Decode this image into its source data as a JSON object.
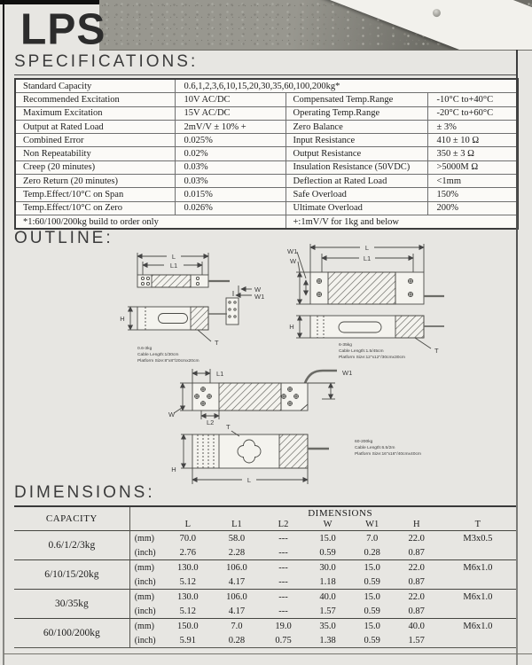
{
  "page": {
    "title": "LPS"
  },
  "headings": {
    "specifications": "SPECIFICATIONS:",
    "outline": "OUTLINE:",
    "dimensions": "DIMENSIONS:"
  },
  "spec_table": {
    "capacity_label": "Standard Capacity",
    "capacity_value": "0.6,1,2,3,6,10,15,20,30,35,60,100,200kg*",
    "rows": [
      {
        "l1": "Recommended Excitation",
        "v1": "10V AC/DC",
        "l2": "Compensated Temp.Range",
        "v2": "-10°C to+40°C"
      },
      {
        "l1": "Maximum Excitation",
        "v1": "15V AC/DC",
        "l2": "Operating Temp.Range",
        "v2": "-20°C to+60°C"
      },
      {
        "l1": "Output at Rated Load",
        "v1": "2mV/V ± 10% +",
        "l2": "Zero Balance",
        "v2": "± 3%"
      },
      {
        "l1": "Combined Error",
        "v1": "0.025%",
        "l2": "Input Resistance",
        "v2": "410 ± 10 Ω"
      },
      {
        "l1": "Non Repeatability",
        "v1": "0.02%",
        "l2": "Output Resistance",
        "v2": "350 ± 3 Ω"
      },
      {
        "l1": "Creep (20 minutes)",
        "v1": "0.03%",
        "l2": "Insulation Resistance (50VDC)",
        "v2": ">5000M Ω"
      },
      {
        "l1": "Zero Return (20 minutes)",
        "v1": "0.03%",
        "l2": "Deflection at Rated Load",
        "v2": "<1mm"
      },
      {
        "l1": "Temp.Effect/10°C on Span",
        "v1": "0.015%",
        "l2": "Safe Overload",
        "v2": "150%"
      },
      {
        "l1": "Temp.Effect/10°C on Zero",
        "v1": "0.026%",
        "l2": "Ultimate Overload",
        "v2": "200%"
      }
    ],
    "footnote_left": "*1:60/100/200kg build to order only",
    "footnote_right": "+:1mV/V for 1kg and below"
  },
  "outline": {
    "dim_labels": {
      "l": "L",
      "l1": "L1",
      "l2": "L2",
      "w": "W",
      "w1": "W1",
      "h": "H",
      "t": "T"
    },
    "drawings": [
      {
        "range": "0.6-3kg",
        "cable": "Cable Length:1/30cm",
        "platform": "Platform Size:8\"x8\"/20cmx20cm"
      },
      {
        "range": "6-35kg",
        "cable": "Cable Length:1.5/45cm",
        "platform": "Platform Size:12\"x12\"/30cmx30cm"
      },
      {
        "range": "60-200kg",
        "cable": "Cable Length:6.5/2m",
        "platform": "Platform Size:16\"x16\"/40cmx40cm"
      }
    ]
  },
  "dim_table": {
    "capacity_header": "CAPACITY",
    "dimensions_header": "DIMENSIONS",
    "columns": [
      "L",
      "L1",
      "L2",
      "W",
      "W1",
      "H",
      "T"
    ],
    "unit_labels": [
      "(mm)",
      "(inch)"
    ],
    "rows": [
      {
        "capacity": "0.6/1/2/3kg",
        "mm": [
          "70.0",
          "58.0",
          "---",
          "15.0",
          "7.0",
          "22.0",
          "M3x0.5"
        ],
        "inch": [
          "2.76",
          "2.28",
          "---",
          "0.59",
          "0.28",
          "0.87",
          ""
        ]
      },
      {
        "capacity": "6/10/15/20kg",
        "mm": [
          "130.0",
          "106.0",
          "---",
          "30.0",
          "15.0",
          "22.0",
          "M6x1.0"
        ],
        "inch": [
          "5.12",
          "4.17",
          "---",
          "1.18",
          "0.59",
          "0.87",
          ""
        ]
      },
      {
        "capacity": "30/35kg",
        "mm": [
          "130.0",
          "106.0",
          "---",
          "40.0",
          "15.0",
          "22.0",
          "M6x1.0"
        ],
        "inch": [
          "5.12",
          "4.17",
          "---",
          "1.57",
          "0.59",
          "0.87",
          ""
        ]
      },
      {
        "capacity": "60/100/200kg",
        "mm": [
          "150.0",
          "7.0",
          "19.0",
          "35.0",
          "15.0",
          "40.0",
          "M6x1.0"
        ],
        "inch": [
          "5.91",
          "0.28",
          "0.75",
          "1.38",
          "0.59",
          "1.57",
          ""
        ]
      }
    ]
  }
}
